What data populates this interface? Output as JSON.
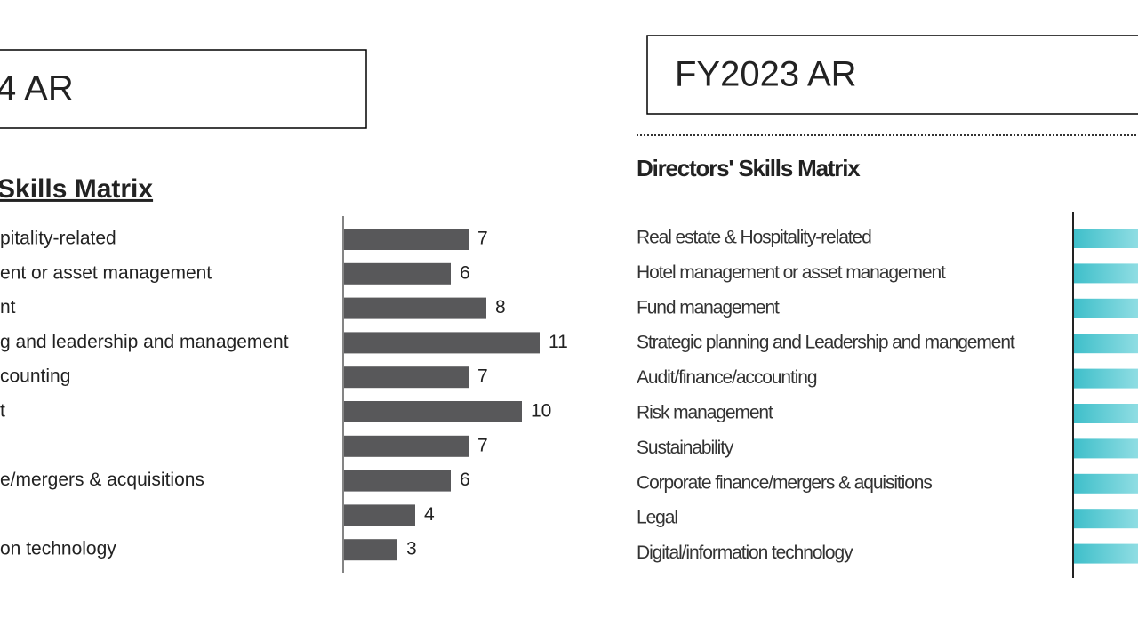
{
  "chart_data": [
    {
      "type": "bar",
      "header": "4 AR",
      "title": "Skills Matrix",
      "categories": [
        "pitality-related",
        "ent or asset management",
        "nt",
        "g and leadership and management",
        "counting",
        "t",
        "",
        "e/mergers & acquisitions",
        "",
        "on technology"
      ],
      "values": [
        7,
        6,
        8,
        11,
        7,
        10,
        7,
        6,
        4,
        3
      ],
      "color": "#58585a"
    },
    {
      "type": "bar-clipped",
      "header": "FY2023 AR",
      "title": "Directors' Skills Matrix",
      "categories": [
        "Real estate & Hospitality-related",
        "Hotel management or asset management",
        "Fund management",
        "Strategic planning and Leadership and mangement",
        "Audit/finance/accounting",
        "Risk management",
        "Sustainability",
        "Corporate finance/mergers & aquisitions",
        "Legal",
        "Digital/information technology"
      ],
      "color": "#3fbfca"
    }
  ]
}
